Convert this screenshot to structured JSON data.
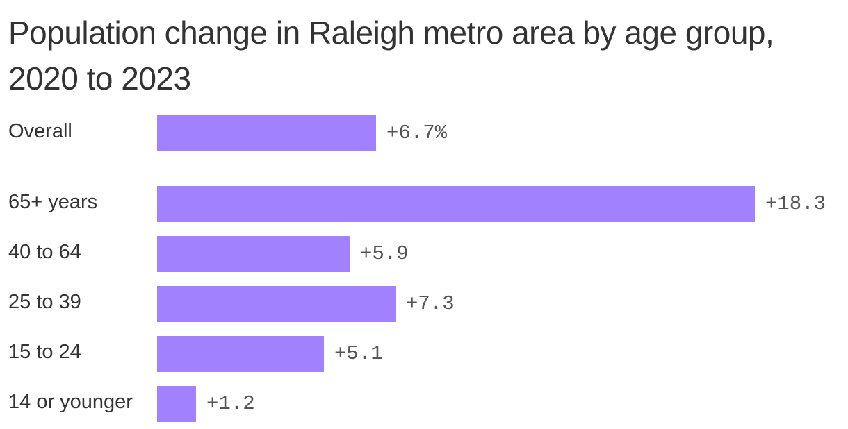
{
  "chart_data": {
    "type": "bar",
    "orientation": "horizontal",
    "title": "Population change in Raleigh metro area by age group, 2020 to 2023",
    "categories": [
      "Overall",
      "65+ years",
      "40 to 64",
      "25 to 39",
      "15 to 24",
      "14 or younger"
    ],
    "values": [
      6.7,
      18.3,
      5.9,
      7.3,
      5.1,
      1.2
    ],
    "data_labels": [
      "+6.7%",
      "+18.3",
      "+5.9",
      "+7.3",
      "+5.1",
      "+1.2"
    ],
    "unit": "%",
    "xlim": [
      0,
      18.3
    ],
    "grid": false,
    "legend": "none"
  },
  "colors": {
    "bar": "#a181fd",
    "title": "#333333",
    "label": "#333333",
    "value": "#555555",
    "background": "#ffffff"
  }
}
